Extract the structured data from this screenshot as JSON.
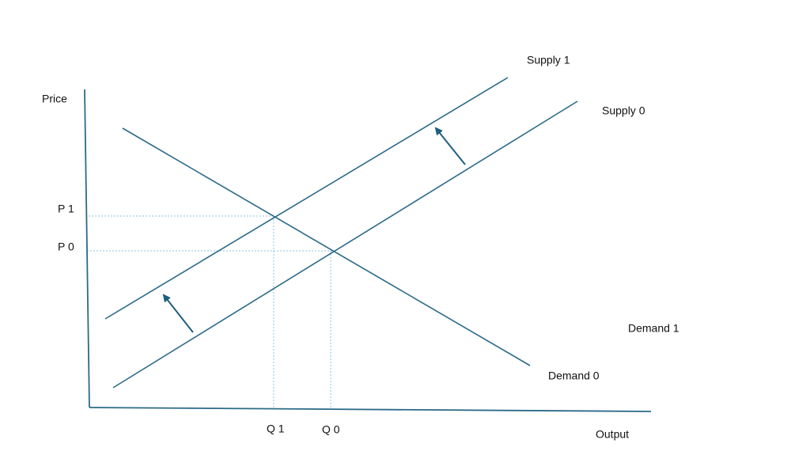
{
  "axes": {
    "y_label": "Price",
    "x_label": "Output"
  },
  "curves": {
    "supply_1": "Supply 1",
    "supply_0": "Supply 0",
    "demand_1": "Demand 1",
    "demand_0": "Demand 0"
  },
  "prices": [
    "P 1",
    "P 0"
  ],
  "quantities": [
    "Q 1",
    "Q 0"
  ]
}
